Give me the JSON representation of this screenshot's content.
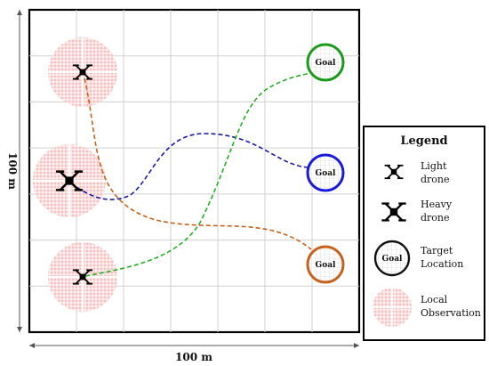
{
  "axes": {
    "x_label": "100 m",
    "y_label": "100 m"
  },
  "goals": [
    {
      "label": "Goal",
      "color": "#1a9a1a"
    },
    {
      "label": "Goal",
      "color": "#1a1adf"
    },
    {
      "label": "Goal",
      "color": "#c8621a"
    }
  ],
  "drones": [
    {
      "type": "light",
      "observation": "local"
    },
    {
      "type": "heavy",
      "observation": "local"
    },
    {
      "type": "light",
      "observation": "local"
    }
  ],
  "paths": [
    {
      "from": "drone-1",
      "to": "goal-3",
      "color": "#c8621a"
    },
    {
      "from": "drone-2",
      "to": "goal-2",
      "color": "#1a1aa8"
    },
    {
      "from": "drone-3",
      "to": "goal-1",
      "color": "#22b022"
    }
  ],
  "legend": {
    "title": "Legend",
    "items": [
      {
        "line1": "Light",
        "line2": "drone",
        "icon": "light-drone-icon"
      },
      {
        "line1": "Heavy",
        "line2": "drone",
        "icon": "heavy-drone-icon"
      },
      {
        "line1": "Target",
        "line2": "Location",
        "icon": "goal-marker",
        "marker_text": "Goal"
      },
      {
        "line1": "Local",
        "line2": "Observation",
        "icon": "observation-zone"
      }
    ]
  },
  "colors": {
    "observation_fill": "#f9cccc",
    "grid": "#d0d0d0",
    "frame": "#000000"
  }
}
